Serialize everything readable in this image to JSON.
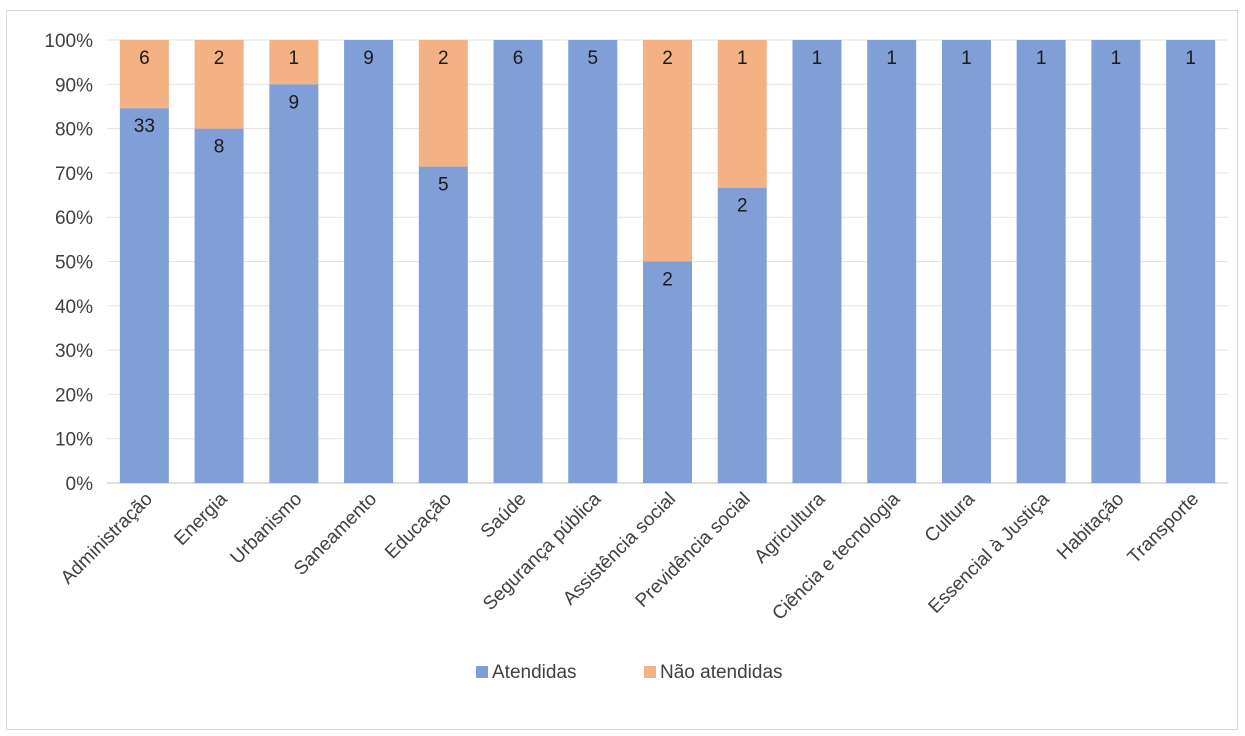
{
  "chart_data": {
    "type": "bar",
    "stacked": true,
    "percent": true,
    "categories": [
      "Administração",
      "Energia",
      "Urbanismo",
      "Saneamento",
      "Educação",
      "Saúde",
      "Segurança pública",
      "Assistência social",
      "Previdência social",
      "Agricultura",
      "Ciência e tecnologia",
      "Cultura",
      "Essencial à Justiça",
      "Habitação",
      "Transporte"
    ],
    "series": [
      {
        "name": "Atendidas",
        "color": "#7f9fd6",
        "values": [
          33,
          8,
          9,
          9,
          5,
          6,
          5,
          2,
          2,
          1,
          1,
          1,
          1,
          1,
          1
        ]
      },
      {
        "name": "Não atendidas",
        "color": "#f4b183",
        "values": [
          6,
          2,
          1,
          0,
          2,
          0,
          0,
          2,
          1,
          0,
          0,
          0,
          0,
          0,
          0
        ]
      }
    ],
    "yticks": [
      "0%",
      "10%",
      "20%",
      "30%",
      "40%",
      "50%",
      "60%",
      "70%",
      "80%",
      "90%",
      "100%"
    ],
    "ylim": [
      0,
      100
    ],
    "grid": true,
    "legend": "bottom"
  }
}
